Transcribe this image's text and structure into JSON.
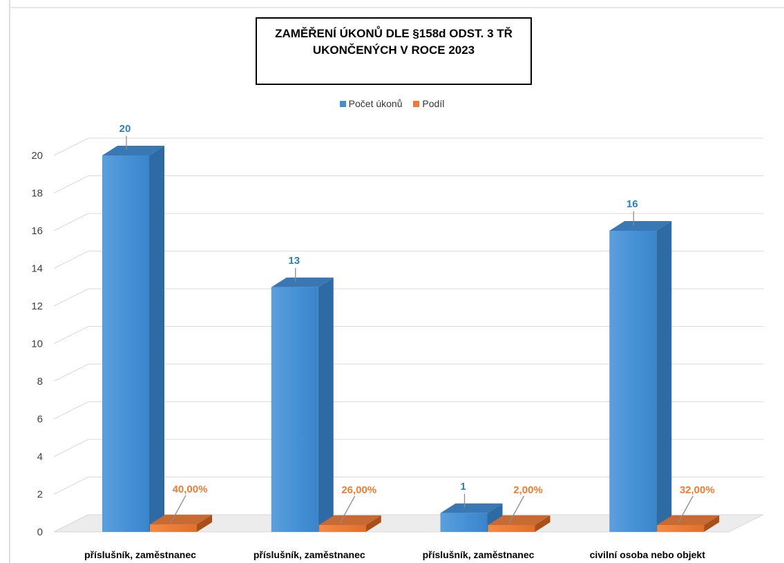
{
  "chart_data": {
    "type": "bar",
    "title_lines": [
      "ZAMĚŘENÍ ÚKONŮ DLE §158d ODST. 3 TŘ",
      "UKONČENÝCH V ROCE 2023"
    ],
    "categories": [
      "příslušník, zaměstnanec",
      "příslušník, zaměstnanec",
      "příslušník, zaměstnanec",
      "civilní osoba nebo objekt"
    ],
    "series": [
      {
        "name": "Počet úkonů",
        "values": [
          20,
          13,
          1,
          16
        ],
        "labels": [
          "20",
          "13",
          "1",
          "16"
        ],
        "color": "#3f8fd3"
      },
      {
        "name": "Podíl",
        "values": [
          0.4,
          0.26,
          0.02,
          0.32
        ],
        "labels": [
          "40,00%",
          "26,00%",
          "2,00%",
          "32,00%"
        ],
        "color": "#ef7b33"
      }
    ],
    "yticks": [
      "0",
      "2",
      "4",
      "6",
      "8",
      "10",
      "12",
      "14",
      "16",
      "18",
      "20"
    ],
    "ylim": [
      0,
      20
    ],
    "grid": true,
    "legend_position": "top",
    "style": "3d-column"
  }
}
